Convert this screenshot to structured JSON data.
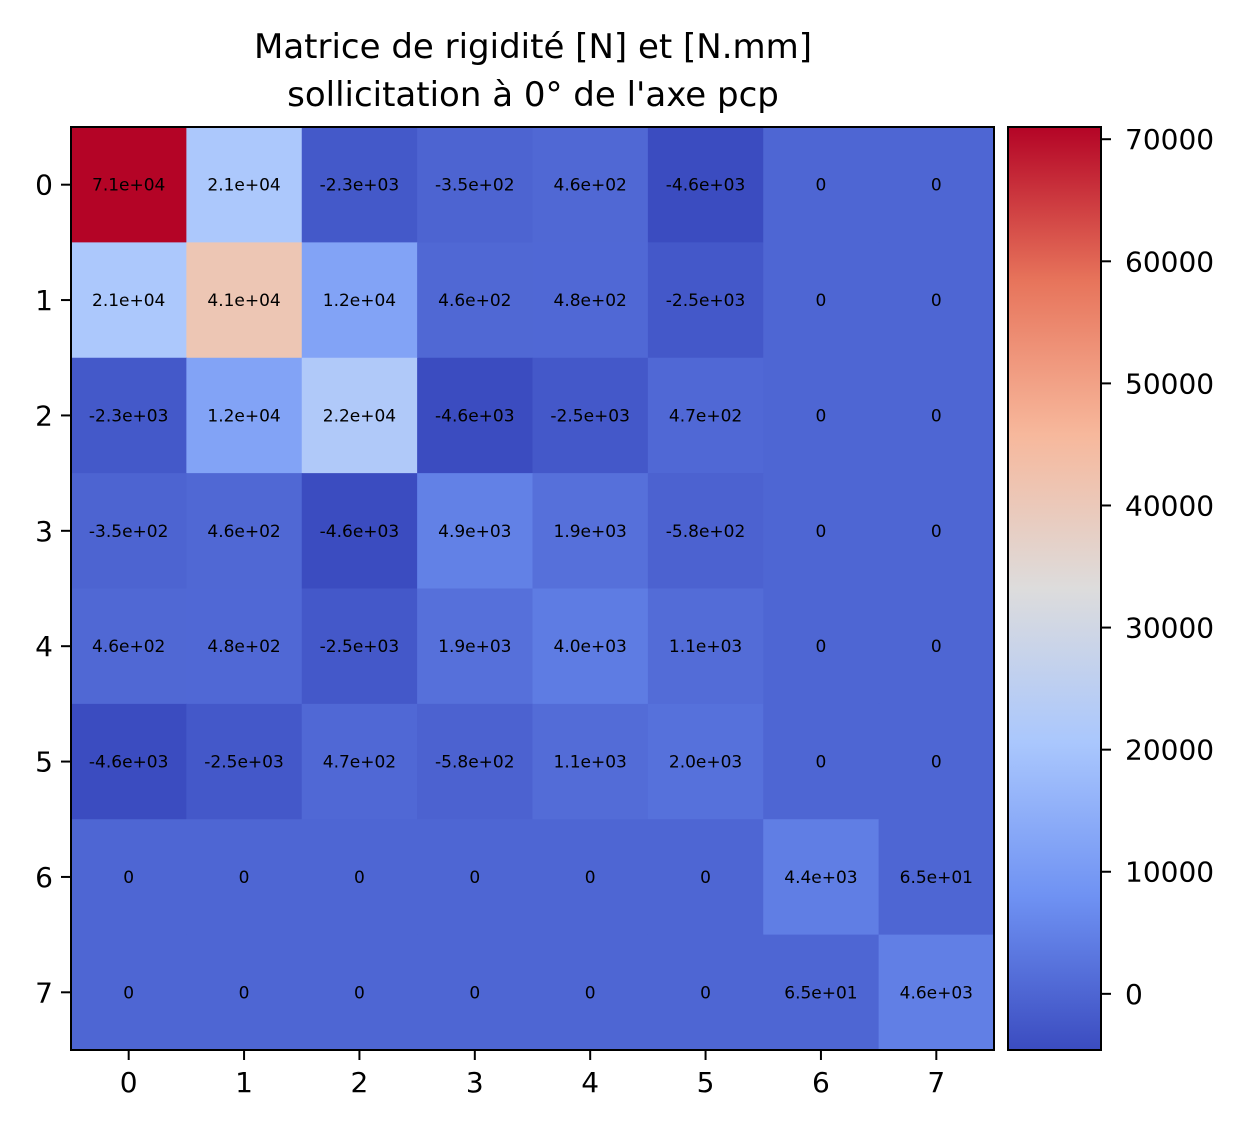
{
  "chart_data": {
    "type": "heatmap",
    "title": [
      "Matrice de rigidité [N] et [N.mm]",
      "sollicitation à 0° de l'axe pcp"
    ],
    "colormap": "coolwarm",
    "colormap_colors": [
      "#3b4cc0",
      "#6f92f3",
      "#aac7fd",
      "#dddcdc",
      "#f7b89c",
      "#e7745b",
      "#b40426"
    ],
    "vmin": -4600,
    "vmax": 71000,
    "x_ticks": [
      "0",
      "1",
      "2",
      "3",
      "4",
      "5",
      "6",
      "7"
    ],
    "y_ticks": [
      "0",
      "1",
      "2",
      "3",
      "4",
      "5",
      "6",
      "7"
    ],
    "colorbar_ticks": [
      "0",
      "10000",
      "20000",
      "30000",
      "40000",
      "50000",
      "60000",
      "70000"
    ],
    "colorbar_tick_values": [
      0,
      10000,
      20000,
      30000,
      40000,
      50000,
      60000,
      70000
    ],
    "values": [
      [
        71000,
        21000,
        -2300,
        -350,
        460,
        -4600,
        0,
        0
      ],
      [
        21000,
        41000,
        12000,
        460,
        480,
        -2500,
        0,
        0
      ],
      [
        -2300,
        12000,
        22000,
        -4600,
        -2500,
        470,
        0,
        0
      ],
      [
        -350,
        460,
        -4600,
        4900,
        1900,
        -580,
        0,
        0
      ],
      [
        460,
        480,
        -2500,
        1900,
        4000,
        1100,
        0,
        0
      ],
      [
        -4600,
        -2500,
        470,
        -580,
        1100,
        2000,
        0,
        0
      ],
      [
        0,
        0,
        0,
        0,
        0,
        0,
        4400,
        65
      ],
      [
        0,
        0,
        0,
        0,
        0,
        0,
        65,
        4600
      ]
    ],
    "labels": [
      [
        "7.1e+04",
        "2.1e+04",
        "-2.3e+03",
        "-3.5e+02",
        "4.6e+02",
        "-4.6e+03",
        "0",
        "0"
      ],
      [
        "2.1e+04",
        "4.1e+04",
        "1.2e+04",
        "4.6e+02",
        "4.8e+02",
        "-2.5e+03",
        "0",
        "0"
      ],
      [
        "-2.3e+03",
        "1.2e+04",
        "2.2e+04",
        "-4.6e+03",
        "-2.5e+03",
        "4.7e+02",
        "0",
        "0"
      ],
      [
        "-3.5e+02",
        "4.6e+02",
        "-4.6e+03",
        "4.9e+03",
        "1.9e+03",
        "-5.8e+02",
        "0",
        "0"
      ],
      [
        "4.6e+02",
        "4.8e+02",
        "-2.5e+03",
        "1.9e+03",
        "4.0e+03",
        "1.1e+03",
        "0",
        "0"
      ],
      [
        "-4.6e+03",
        "-2.5e+03",
        "4.7e+02",
        "-5.8e+02",
        "1.1e+03",
        "2.0e+03",
        "0",
        "0"
      ],
      [
        "0",
        "0",
        "0",
        "0",
        "0",
        "0",
        "4.4e+03",
        "6.5e+01"
      ],
      [
        "0",
        "0",
        "0",
        "0",
        "0",
        "0",
        "6.5e+01",
        "4.6e+03"
      ]
    ]
  }
}
